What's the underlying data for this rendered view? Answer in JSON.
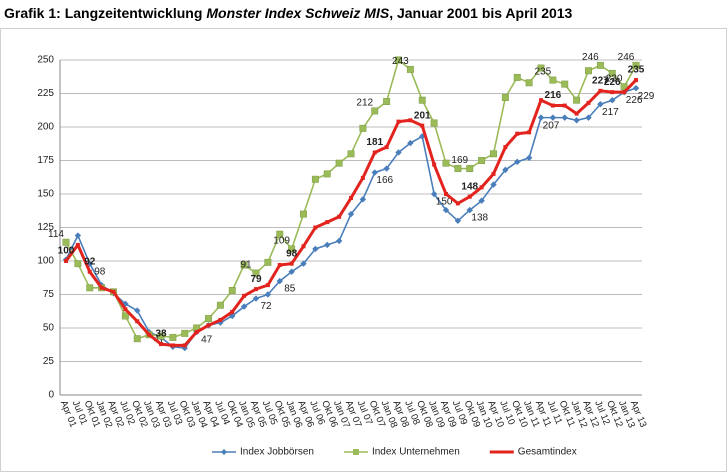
{
  "chart_data": {
    "type": "line",
    "title": [
      "Grafik 1: Langzeitentwicklung",
      "Monster Index Schweiz MIS",
      ", Januar 2001 bis April 2013"
    ],
    "categories": [
      "Apr 01",
      "Jul 01",
      "Okt 01",
      "Jan 02",
      "Apr 02",
      "Jul 02",
      "Okt 02",
      "Jan 03",
      "Apr 03",
      "Jul 03",
      "Okt 03",
      "Jan 04",
      "Apr 04",
      "Jul 04",
      "Okt 04",
      "Jan 05",
      "Apr 05",
      "Jul 05",
      "Okt 05",
      "Jan 06",
      "Apr 06",
      "Jul 06",
      "Okt 06",
      "Jan 07",
      "Apr 07",
      "Jul 07",
      "Okt 07",
      "Jan 08",
      "Apr 08",
      "Jul 08",
      "Okt 08",
      "Jan 09",
      "Apr 09",
      "Jul 09",
      "Okt 09",
      "Jan 10",
      "Apr 10",
      "Jul 10",
      "Okt 10",
      "Jan 11",
      "Apr 11",
      "Jul 11",
      "Okt 11",
      "Jan 12",
      "Apr 12",
      "Jul 12",
      "Okt 12",
      "Jan 13",
      "Apr 13"
    ],
    "ylim": [
      0,
      250
    ],
    "yticks": [
      0,
      25,
      50,
      75,
      100,
      125,
      150,
      175,
      200,
      225,
      250
    ],
    "grid": true,
    "legend": "bottom",
    "series": [
      {
        "name": "Index Jobbörsen",
        "color": "#4a7ebb",
        "marker": "diamond",
        "values": [
          101,
          119,
          98,
          82,
          76,
          68,
          63,
          47,
          43,
          36,
          35,
          47,
          52,
          54,
          59,
          66,
          72,
          75,
          85,
          92,
          98,
          109,
          112,
          115,
          135,
          146,
          166,
          169,
          181,
          188,
          193,
          150,
          138,
          130,
          138,
          145,
          157,
          168,
          174,
          177,
          207,
          207,
          207,
          205,
          207,
          217,
          220,
          226,
          229
        ],
        "value_labels": [
          null,
          null,
          "98",
          null,
          null,
          null,
          null,
          "47",
          null,
          null,
          null,
          "47",
          null,
          null,
          null,
          null,
          "72",
          null,
          "85",
          null,
          null,
          null,
          null,
          null,
          null,
          null,
          "166",
          null,
          null,
          null,
          null,
          "150",
          null,
          null,
          "138",
          null,
          null,
          null,
          null,
          null,
          "207",
          null,
          null,
          null,
          null,
          "217",
          null,
          "226",
          "229"
        ]
      },
      {
        "name": "Index Unternehmen",
        "color": "#9bbb59",
        "marker": "square",
        "values": [
          114,
          98,
          80,
          80,
          77,
          59,
          42,
          45,
          44,
          43,
          46,
          50,
          57,
          67,
          78,
          97,
          91,
          99,
          120,
          109,
          135,
          161,
          165,
          173,
          180,
          199,
          212,
          219,
          250,
          243,
          220,
          203,
          173,
          169,
          169,
          175,
          180,
          222,
          237,
          233,
          244,
          235,
          232,
          220,
          242,
          246,
          240,
          230,
          246
        ],
        "value_labels": [
          "114",
          null,
          null,
          null,
          null,
          null,
          null,
          null,
          null,
          null,
          null,
          null,
          null,
          null,
          null,
          null,
          "91",
          null,
          null,
          "109",
          null,
          null,
          null,
          null,
          null,
          null,
          "212",
          null,
          null,
          "243",
          null,
          null,
          null,
          null,
          "169",
          null,
          null,
          null,
          null,
          null,
          null,
          "235",
          null,
          null,
          null,
          "246",
          null,
          "230",
          "246"
        ]
      },
      {
        "name": "Gesamtindex",
        "color": "#e3231d",
        "marker": "line",
        "values": [
          100,
          112,
          92,
          80,
          77,
          64,
          55,
          45,
          38,
          37,
          37,
          47,
          52,
          56,
          62,
          74,
          79,
          82,
          97,
          98,
          111,
          125,
          129,
          133,
          147,
          162,
          181,
          185,
          204,
          205,
          201,
          172,
          150,
          143,
          148,
          155,
          165,
          185,
          195,
          196,
          220,
          216,
          216,
          210,
          218,
          227,
          226,
          226,
          235
        ],
        "value_labels": [
          "100",
          null,
          "92",
          null,
          null,
          null,
          null,
          null,
          "38",
          null,
          null,
          null,
          null,
          null,
          null,
          null,
          "79",
          null,
          null,
          "98",
          null,
          null,
          null,
          null,
          null,
          null,
          "181",
          null,
          null,
          null,
          "201",
          null,
          null,
          null,
          "148",
          null,
          null,
          null,
          null,
          null,
          null,
          "216",
          null,
          null,
          null,
          "227",
          "226",
          null,
          "235"
        ]
      }
    ]
  }
}
